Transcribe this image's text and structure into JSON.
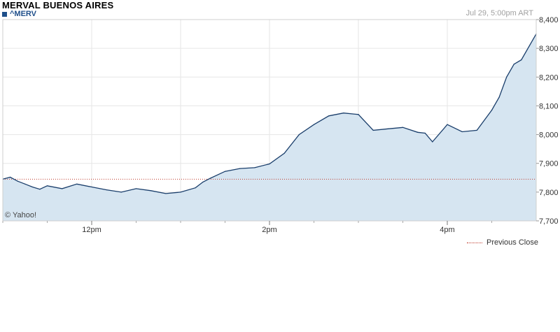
{
  "title": "MERVAL BUENOS AIRES",
  "legend": {
    "symbol": "^MERV",
    "color": "#1f4f8a"
  },
  "timestamp": "Jul 29, 5:00pm ART",
  "credit": "© Yahoo!",
  "previous_close_label": "Previous Close",
  "colors": {
    "line": "#1a3e6b",
    "area": "#d6e5f1",
    "previous_close": "#c0392b",
    "grid": "#e6e6e6"
  },
  "chart_data": {
    "type": "area",
    "title": "MERVAL BUENOS AIRES",
    "series": [
      {
        "name": "^MERV",
        "x": [
          "11:00",
          "11:05",
          "11:10",
          "11:15",
          "11:20",
          "11:25",
          "11:30",
          "11:40",
          "11:50",
          "12:00",
          "12:10",
          "12:20",
          "12:30",
          "12:40",
          "12:50",
          "13:00",
          "13:10",
          "13:15",
          "13:20",
          "13:30",
          "13:40",
          "13:50",
          "14:00",
          "14:10",
          "14:20",
          "14:30",
          "14:40",
          "14:50",
          "15:00",
          "15:10",
          "15:20",
          "15:30",
          "15:40",
          "15:45",
          "15:50",
          "16:00",
          "16:10",
          "16:20",
          "16:30",
          "16:35",
          "16:40",
          "16:45",
          "16:50",
          "17:00"
        ],
        "values": [
          7845,
          7852,
          7838,
          7828,
          7818,
          7810,
          7822,
          7812,
          7828,
          7818,
          7808,
          7800,
          7812,
          7805,
          7795,
          7800,
          7815,
          7835,
          7848,
          7872,
          7882,
          7885,
          7898,
          7935,
          8000,
          8035,
          8065,
          8075,
          8070,
          8015,
          8020,
          8025,
          8008,
          8005,
          7975,
          8035,
          8010,
          8015,
          8085,
          8130,
          8200,
          8245,
          8260,
          8350
        ]
      }
    ],
    "previous_close": 7845,
    "x_tick_labels": [
      "12pm",
      "2pm",
      "4pm"
    ],
    "y_tick_labels": [
      "8,400",
      "8,300",
      "8,200",
      "8,100",
      "8,000",
      "7,900",
      "7,800",
      "7,700"
    ],
    "y_ticks": [
      8400,
      8300,
      8200,
      8100,
      8000,
      7900,
      7800,
      7700
    ],
    "ylim": [
      7700,
      8400
    ],
    "x_range": [
      "11:00",
      "17:00"
    ],
    "grid": true,
    "legend_position": "top-left"
  }
}
